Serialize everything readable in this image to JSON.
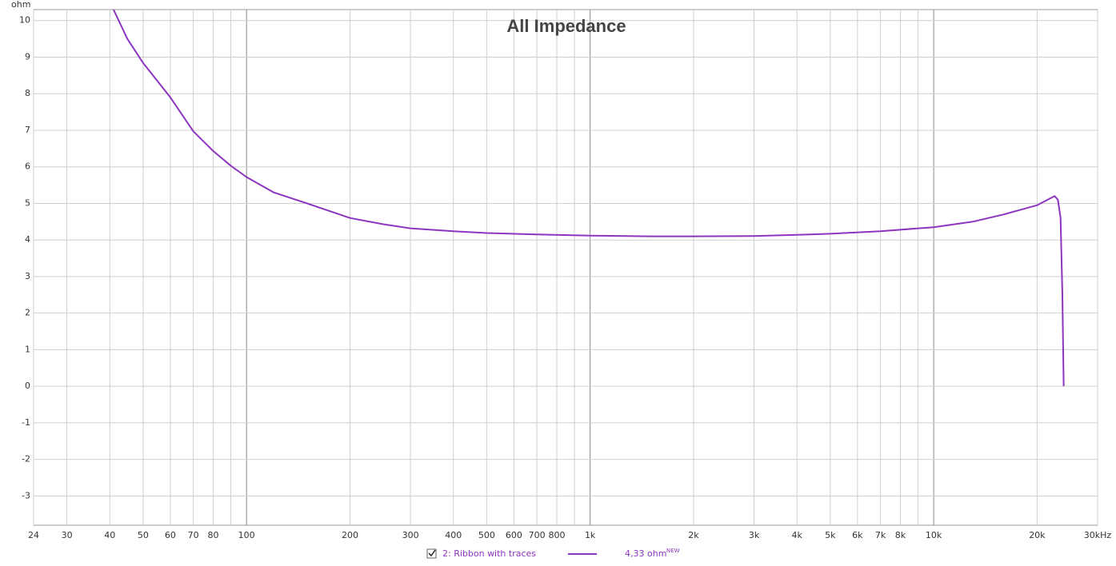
{
  "chart_data": {
    "type": "line",
    "title": "All Impedance",
    "y_label": "ohm",
    "xscale": "log",
    "xlim": [
      24,
      30000
    ],
    "ylim": [
      -3.8,
      10.3
    ],
    "xticks": [
      24,
      30,
      40,
      50,
      60,
      70,
      80,
      100,
      200,
      300,
      400,
      500,
      600,
      700,
      800,
      {
        "value": 1000,
        "label": "1k"
      },
      {
        "value": 2000,
        "label": "2k"
      },
      {
        "value": 3000,
        "label": "3k"
      },
      {
        "value": 4000,
        "label": "4k"
      },
      {
        "value": 5000,
        "label": "5k"
      },
      {
        "value": 6000,
        "label": "6k"
      },
      {
        "value": 7000,
        "label": "7k"
      },
      {
        "value": 8000,
        "label": "8k"
      },
      {
        "value": 10000,
        "label": "10k"
      },
      {
        "value": 20000,
        "label": "20k"
      },
      {
        "value": 30000,
        "label": "30kHz"
      }
    ],
    "xminor": [
      90,
      900,
      9000
    ],
    "yticks": [
      10,
      9,
      8,
      7,
      6,
      5,
      4,
      3,
      2,
      1,
      0,
      -1,
      -2,
      -3
    ],
    "grid": true,
    "series": [
      {
        "name": "2: Ribbon with traces",
        "color": "#8b35c0",
        "value_text": "4,33 ohm",
        "value_tag": "NEW",
        "x": [
          41,
          45,
          50,
          55,
          60,
          70,
          80,
          90,
          100,
          120,
          150,
          200,
          250,
          300,
          400,
          500,
          700,
          1000,
          1500,
          2000,
          3000,
          4000,
          5000,
          7000,
          10000,
          13000,
          16000,
          20000,
          22500,
          23000,
          23400,
          23700,
          23900
        ],
        "values": [
          10.3,
          9.5,
          8.84,
          8.35,
          7.9,
          6.97,
          6.43,
          6.03,
          5.72,
          5.3,
          5.0,
          4.6,
          4.43,
          4.32,
          4.24,
          4.19,
          4.15,
          4.12,
          4.1,
          4.1,
          4.11,
          4.14,
          4.17,
          4.24,
          4.35,
          4.5,
          4.7,
          4.95,
          5.2,
          5.1,
          4.6,
          2.5,
          0
        ]
      }
    ]
  }
}
